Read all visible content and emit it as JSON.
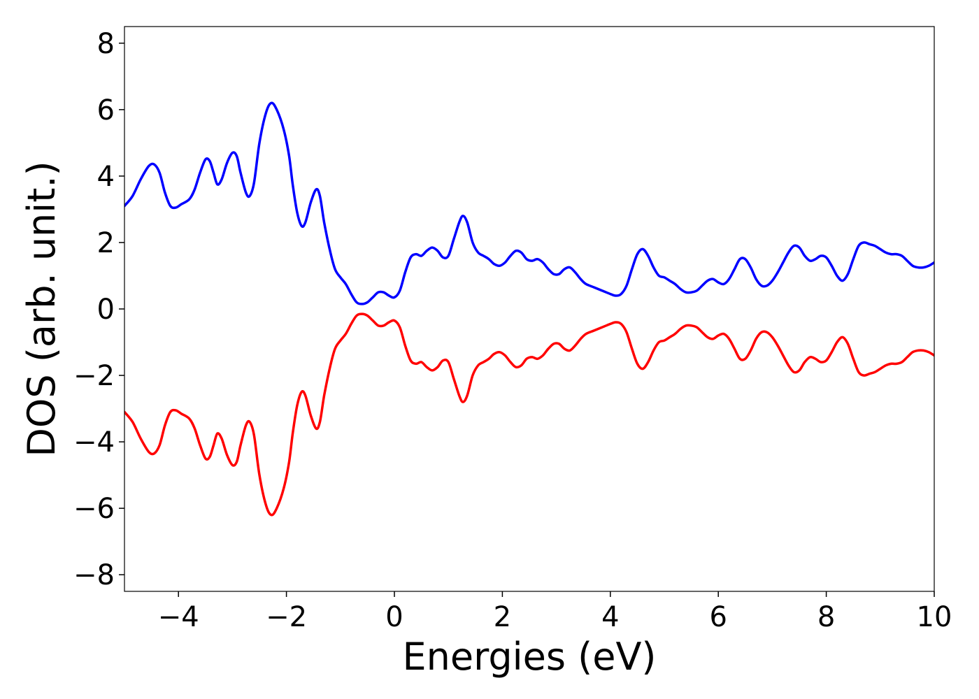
{
  "chart_data": {
    "type": "line",
    "title": "",
    "xlabel": "Energies (eV)",
    "ylabel": "DOS (arb. unit.)",
    "xlim": [
      -5,
      10
    ],
    "ylim": [
      -8.5,
      8.5
    ],
    "xticks": [
      -4,
      -2,
      0,
      2,
      4,
      6,
      8,
      10
    ],
    "xtick_labels": [
      "−4",
      "−2",
      "0",
      "2",
      "4",
      "6",
      "8",
      "10"
    ],
    "yticks": [
      8,
      6,
      4,
      2,
      0,
      -2,
      -4,
      -6,
      -8
    ],
    "ytick_labels": [
      "8",
      "6",
      "4",
      "2",
      "0",
      "−2",
      "−4",
      "−6",
      "−8"
    ],
    "grid": false,
    "legend": "none",
    "series": [
      {
        "color": "#0000ff",
        "points": [
          [
            -5.0,
            3.1
          ],
          [
            -4.85,
            3.4
          ],
          [
            -4.7,
            3.9
          ],
          [
            -4.55,
            4.3
          ],
          [
            -4.45,
            4.35
          ],
          [
            -4.35,
            4.1
          ],
          [
            -4.25,
            3.5
          ],
          [
            -4.15,
            3.1
          ],
          [
            -4.05,
            3.05
          ],
          [
            -3.95,
            3.15
          ],
          [
            -3.8,
            3.3
          ],
          [
            -3.7,
            3.6
          ],
          [
            -3.6,
            4.1
          ],
          [
            -3.5,
            4.5
          ],
          [
            -3.42,
            4.45
          ],
          [
            -3.35,
            4.1
          ],
          [
            -3.28,
            3.75
          ],
          [
            -3.2,
            3.9
          ],
          [
            -3.1,
            4.4
          ],
          [
            -3.0,
            4.7
          ],
          [
            -2.92,
            4.6
          ],
          [
            -2.85,
            4.1
          ],
          [
            -2.75,
            3.5
          ],
          [
            -2.68,
            3.4
          ],
          [
            -2.6,
            3.8
          ],
          [
            -2.5,
            5.0
          ],
          [
            -2.38,
            5.9
          ],
          [
            -2.28,
            6.2
          ],
          [
            -2.18,
            6.0
          ],
          [
            -2.05,
            5.4
          ],
          [
            -1.95,
            4.6
          ],
          [
            -1.88,
            3.7
          ],
          [
            -1.8,
            2.9
          ],
          [
            -1.72,
            2.5
          ],
          [
            -1.65,
            2.6
          ],
          [
            -1.55,
            3.2
          ],
          [
            -1.45,
            3.6
          ],
          [
            -1.38,
            3.4
          ],
          [
            -1.3,
            2.6
          ],
          [
            -1.2,
            1.8
          ],
          [
            -1.1,
            1.2
          ],
          [
            -1.0,
            0.95
          ],
          [
            -0.9,
            0.75
          ],
          [
            -0.8,
            0.45
          ],
          [
            -0.7,
            0.2
          ],
          [
            -0.6,
            0.15
          ],
          [
            -0.5,
            0.2
          ],
          [
            -0.4,
            0.35
          ],
          [
            -0.3,
            0.5
          ],
          [
            -0.2,
            0.5
          ],
          [
            -0.1,
            0.4
          ],
          [
            0.0,
            0.35
          ],
          [
            0.1,
            0.55
          ],
          [
            0.2,
            1.1
          ],
          [
            0.3,
            1.55
          ],
          [
            0.4,
            1.65
          ],
          [
            0.5,
            1.6
          ],
          [
            0.6,
            1.75
          ],
          [
            0.7,
            1.85
          ],
          [
            0.8,
            1.75
          ],
          [
            0.9,
            1.55
          ],
          [
            1.0,
            1.6
          ],
          [
            1.1,
            2.1
          ],
          [
            1.2,
            2.6
          ],
          [
            1.27,
            2.8
          ],
          [
            1.35,
            2.6
          ],
          [
            1.45,
            2.0
          ],
          [
            1.55,
            1.7
          ],
          [
            1.65,
            1.6
          ],
          [
            1.75,
            1.5
          ],
          [
            1.85,
            1.35
          ],
          [
            1.95,
            1.3
          ],
          [
            2.05,
            1.4
          ],
          [
            2.15,
            1.6
          ],
          [
            2.25,
            1.75
          ],
          [
            2.35,
            1.7
          ],
          [
            2.45,
            1.5
          ],
          [
            2.55,
            1.45
          ],
          [
            2.65,
            1.5
          ],
          [
            2.75,
            1.4
          ],
          [
            2.85,
            1.2
          ],
          [
            2.95,
            1.05
          ],
          [
            3.05,
            1.05
          ],
          [
            3.15,
            1.2
          ],
          [
            3.25,
            1.25
          ],
          [
            3.35,
            1.1
          ],
          [
            3.45,
            0.9
          ],
          [
            3.55,
            0.75
          ],
          [
            3.7,
            0.65
          ],
          [
            3.85,
            0.55
          ],
          [
            4.0,
            0.45
          ],
          [
            4.1,
            0.4
          ],
          [
            4.2,
            0.45
          ],
          [
            4.3,
            0.7
          ],
          [
            4.4,
            1.2
          ],
          [
            4.5,
            1.65
          ],
          [
            4.6,
            1.8
          ],
          [
            4.7,
            1.6
          ],
          [
            4.8,
            1.25
          ],
          [
            4.9,
            1.0
          ],
          [
            5.0,
            0.95
          ],
          [
            5.1,
            0.85
          ],
          [
            5.2,
            0.75
          ],
          [
            5.3,
            0.6
          ],
          [
            5.4,
            0.5
          ],
          [
            5.5,
            0.5
          ],
          [
            5.6,
            0.55
          ],
          [
            5.7,
            0.7
          ],
          [
            5.8,
            0.85
          ],
          [
            5.9,
            0.9
          ],
          [
            6.0,
            0.8
          ],
          [
            6.1,
            0.75
          ],
          [
            6.2,
            0.9
          ],
          [
            6.3,
            1.2
          ],
          [
            6.4,
            1.5
          ],
          [
            6.5,
            1.5
          ],
          [
            6.6,
            1.25
          ],
          [
            6.7,
            0.9
          ],
          [
            6.8,
            0.7
          ],
          [
            6.9,
            0.7
          ],
          [
            7.0,
            0.85
          ],
          [
            7.1,
            1.1
          ],
          [
            7.2,
            1.4
          ],
          [
            7.3,
            1.7
          ],
          [
            7.4,
            1.9
          ],
          [
            7.5,
            1.85
          ],
          [
            7.6,
            1.6
          ],
          [
            7.7,
            1.45
          ],
          [
            7.8,
            1.5
          ],
          [
            7.9,
            1.6
          ],
          [
            8.0,
            1.55
          ],
          [
            8.1,
            1.3
          ],
          [
            8.2,
            1.0
          ],
          [
            8.3,
            0.85
          ],
          [
            8.4,
            1.05
          ],
          [
            8.5,
            1.5
          ],
          [
            8.6,
            1.9
          ],
          [
            8.7,
            2.0
          ],
          [
            8.8,
            1.95
          ],
          [
            8.9,
            1.9
          ],
          [
            9.0,
            1.8
          ],
          [
            9.1,
            1.7
          ],
          [
            9.2,
            1.65
          ],
          [
            9.3,
            1.65
          ],
          [
            9.4,
            1.6
          ],
          [
            9.5,
            1.45
          ],
          [
            9.6,
            1.3
          ],
          [
            9.7,
            1.25
          ],
          [
            9.8,
            1.25
          ],
          [
            9.9,
            1.3
          ],
          [
            10.0,
            1.4
          ]
        ]
      },
      {
        "color": "#ff0000",
        "points": [
          [
            -5.0,
            -3.1
          ],
          [
            -4.85,
            -3.4
          ],
          [
            -4.7,
            -3.9
          ],
          [
            -4.55,
            -4.3
          ],
          [
            -4.45,
            -4.35
          ],
          [
            -4.35,
            -4.1
          ],
          [
            -4.25,
            -3.5
          ],
          [
            -4.15,
            -3.1
          ],
          [
            -4.05,
            -3.05
          ],
          [
            -3.95,
            -3.15
          ],
          [
            -3.8,
            -3.3
          ],
          [
            -3.7,
            -3.6
          ],
          [
            -3.6,
            -4.1
          ],
          [
            -3.5,
            -4.5
          ],
          [
            -3.42,
            -4.45
          ],
          [
            -3.35,
            -4.1
          ],
          [
            -3.28,
            -3.75
          ],
          [
            -3.2,
            -3.9
          ],
          [
            -3.1,
            -4.4
          ],
          [
            -3.0,
            -4.7
          ],
          [
            -2.92,
            -4.6
          ],
          [
            -2.85,
            -4.1
          ],
          [
            -2.75,
            -3.5
          ],
          [
            -2.68,
            -3.4
          ],
          [
            -2.6,
            -3.8
          ],
          [
            -2.5,
            -5.0
          ],
          [
            -2.38,
            -5.9
          ],
          [
            -2.28,
            -6.2
          ],
          [
            -2.18,
            -6.0
          ],
          [
            -2.05,
            -5.4
          ],
          [
            -1.95,
            -4.6
          ],
          [
            -1.88,
            -3.7
          ],
          [
            -1.8,
            -2.9
          ],
          [
            -1.72,
            -2.5
          ],
          [
            -1.65,
            -2.6
          ],
          [
            -1.55,
            -3.2
          ],
          [
            -1.45,
            -3.6
          ],
          [
            -1.38,
            -3.4
          ],
          [
            -1.3,
            -2.6
          ],
          [
            -1.2,
            -1.8
          ],
          [
            -1.1,
            -1.2
          ],
          [
            -1.0,
            -0.95
          ],
          [
            -0.9,
            -0.75
          ],
          [
            -0.8,
            -0.45
          ],
          [
            -0.7,
            -0.2
          ],
          [
            -0.6,
            -0.15
          ],
          [
            -0.5,
            -0.2
          ],
          [
            -0.4,
            -0.35
          ],
          [
            -0.3,
            -0.5
          ],
          [
            -0.2,
            -0.5
          ],
          [
            -0.1,
            -0.4
          ],
          [
            0.0,
            -0.35
          ],
          [
            0.1,
            -0.55
          ],
          [
            0.2,
            -1.1
          ],
          [
            0.3,
            -1.55
          ],
          [
            0.4,
            -1.65
          ],
          [
            0.5,
            -1.6
          ],
          [
            0.6,
            -1.75
          ],
          [
            0.7,
            -1.85
          ],
          [
            0.8,
            -1.75
          ],
          [
            0.9,
            -1.55
          ],
          [
            1.0,
            -1.6
          ],
          [
            1.1,
            -2.1
          ],
          [
            1.2,
            -2.6
          ],
          [
            1.27,
            -2.8
          ],
          [
            1.35,
            -2.6
          ],
          [
            1.45,
            -2.0
          ],
          [
            1.55,
            -1.7
          ],
          [
            1.65,
            -1.6
          ],
          [
            1.75,
            -1.5
          ],
          [
            1.85,
            -1.35
          ],
          [
            1.95,
            -1.3
          ],
          [
            2.05,
            -1.4
          ],
          [
            2.15,
            -1.6
          ],
          [
            2.25,
            -1.75
          ],
          [
            2.35,
            -1.7
          ],
          [
            2.45,
            -1.5
          ],
          [
            2.55,
            -1.45
          ],
          [
            2.65,
            -1.5
          ],
          [
            2.75,
            -1.4
          ],
          [
            2.85,
            -1.2
          ],
          [
            2.95,
            -1.05
          ],
          [
            3.05,
            -1.05
          ],
          [
            3.15,
            -1.2
          ],
          [
            3.25,
            -1.25
          ],
          [
            3.35,
            -1.1
          ],
          [
            3.45,
            -0.9
          ],
          [
            3.55,
            -0.75
          ],
          [
            3.7,
            -0.65
          ],
          [
            3.85,
            -0.55
          ],
          [
            4.0,
            -0.45
          ],
          [
            4.1,
            -0.4
          ],
          [
            4.2,
            -0.45
          ],
          [
            4.3,
            -0.7
          ],
          [
            4.4,
            -1.2
          ],
          [
            4.5,
            -1.65
          ],
          [
            4.6,
            -1.8
          ],
          [
            4.7,
            -1.6
          ],
          [
            4.8,
            -1.25
          ],
          [
            4.9,
            -1.0
          ],
          [
            5.0,
            -0.95
          ],
          [
            5.1,
            -0.85
          ],
          [
            5.2,
            -0.75
          ],
          [
            5.3,
            -0.6
          ],
          [
            5.4,
            -0.5
          ],
          [
            5.5,
            -0.5
          ],
          [
            5.6,
            -0.55
          ],
          [
            5.7,
            -0.7
          ],
          [
            5.8,
            -0.85
          ],
          [
            5.9,
            -0.9
          ],
          [
            6.0,
            -0.8
          ],
          [
            6.1,
            -0.75
          ],
          [
            6.2,
            -0.9
          ],
          [
            6.3,
            -1.2
          ],
          [
            6.4,
            -1.5
          ],
          [
            6.5,
            -1.5
          ],
          [
            6.6,
            -1.25
          ],
          [
            6.7,
            -0.9
          ],
          [
            6.8,
            -0.7
          ],
          [
            6.9,
            -0.7
          ],
          [
            7.0,
            -0.85
          ],
          [
            7.1,
            -1.1
          ],
          [
            7.2,
            -1.4
          ],
          [
            7.3,
            -1.7
          ],
          [
            7.4,
            -1.9
          ],
          [
            7.5,
            -1.85
          ],
          [
            7.6,
            -1.6
          ],
          [
            7.7,
            -1.45
          ],
          [
            7.8,
            -1.5
          ],
          [
            7.9,
            -1.6
          ],
          [
            8.0,
            -1.55
          ],
          [
            8.1,
            -1.3
          ],
          [
            8.2,
            -1.0
          ],
          [
            8.3,
            -0.85
          ],
          [
            8.4,
            -1.05
          ],
          [
            8.5,
            -1.5
          ],
          [
            8.6,
            -1.9
          ],
          [
            8.7,
            -2.0
          ],
          [
            8.8,
            -1.95
          ],
          [
            8.9,
            -1.9
          ],
          [
            9.0,
            -1.8
          ],
          [
            9.1,
            -1.7
          ],
          [
            9.2,
            -1.65
          ],
          [
            9.3,
            -1.65
          ],
          [
            9.4,
            -1.6
          ],
          [
            9.5,
            -1.45
          ],
          [
            9.6,
            -1.3
          ],
          [
            9.7,
            -1.25
          ],
          [
            9.8,
            -1.25
          ],
          [
            9.9,
            -1.3
          ],
          [
            10.0,
            -1.4
          ]
        ]
      }
    ]
  }
}
